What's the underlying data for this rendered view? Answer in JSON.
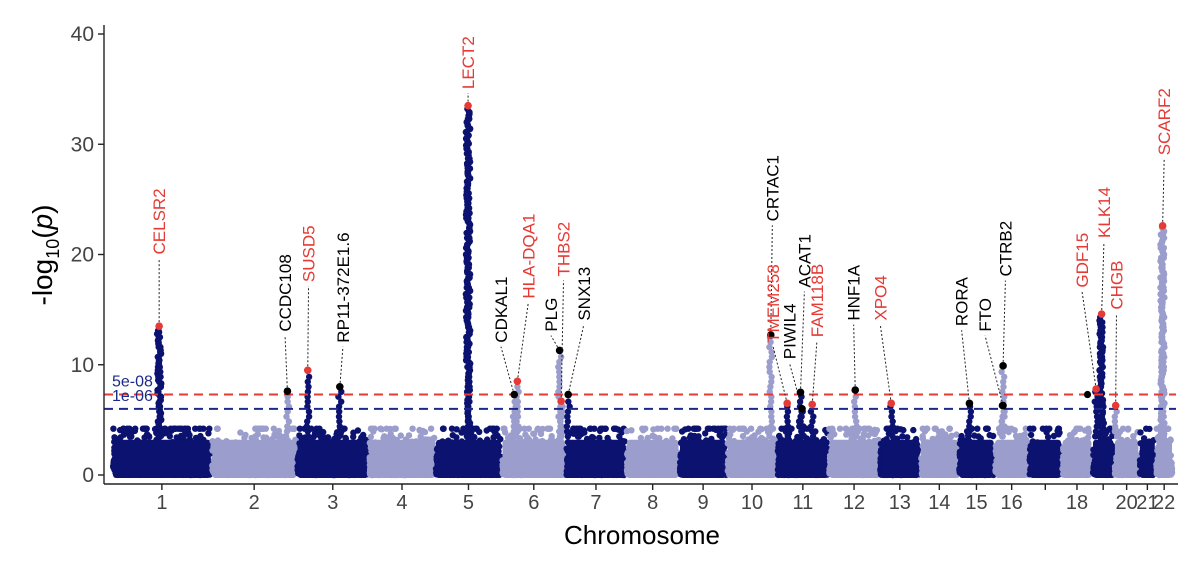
{
  "chart_data": {
    "type": "scatter",
    "subtype": "manhattan",
    "title": "",
    "xlabel": "Chromosome",
    "ylabel_main": "-log",
    "ylabel_sub": "10",
    "ylabel_var": "p",
    "ylim": [
      0,
      40
    ],
    "y_ticks": [
      0,
      10,
      20,
      30,
      40
    ],
    "grid": false,
    "colors": {
      "dark": "#0b1270",
      "light": "#9b9dcc",
      "red": "#e53a35",
      "black": "#000000",
      "threshold_red": "#e53a35",
      "threshold_blue": "#1b2a8a"
    },
    "thresholds": [
      {
        "label": "5e-08",
        "value": 7.3,
        "color": "#e53a35"
      },
      {
        "label": "1e-06",
        "value": 6.0,
        "color": "#1b2a8a"
      }
    ],
    "chromosomes": [
      {
        "chr": "1",
        "start": 0,
        "end": 12.5,
        "label": "1",
        "peak": 13.5,
        "color": "dark"
      },
      {
        "chr": "2",
        "start": 12.7,
        "end": 23.4,
        "label": "2",
        "peak": 6.0,
        "color": "light"
      },
      {
        "chr": "3",
        "start": 23.6,
        "end": 32.6,
        "label": "3",
        "peak": 9.5,
        "color": "dark"
      },
      {
        "chr": "4",
        "start": 32.8,
        "end": 41.1,
        "label": "4",
        "peak": 4.5,
        "color": "light"
      },
      {
        "chr": "5",
        "start": 41.3,
        "end": 49.6,
        "label": "5",
        "peak": 33.5,
        "color": "dark"
      },
      {
        "chr": "6",
        "start": 49.8,
        "end": 57.8,
        "label": "6",
        "peak": 11.3,
        "color": "light"
      },
      {
        "chr": "7",
        "start": 58.0,
        "end": 65.5,
        "label": "7",
        "peak": 7.0,
        "color": "dark"
      },
      {
        "chr": "8",
        "start": 65.7,
        "end": 72.3,
        "label": "8",
        "peak": 4.5,
        "color": "light"
      },
      {
        "chr": "9",
        "start": 72.5,
        "end": 78.4,
        "label": "9",
        "peak": 4.5,
        "color": "dark"
      },
      {
        "chr": "10",
        "start": 78.6,
        "end": 84.8,
        "label": "10",
        "peak": 12.7,
        "color": "light"
      },
      {
        "chr": "11",
        "start": 85.0,
        "end": 91.4,
        "label": "11",
        "peak": 7.5,
        "color": "dark"
      },
      {
        "chr": "12",
        "start": 91.6,
        "end": 97.9,
        "label": "12",
        "peak": 7.7,
        "color": "light"
      },
      {
        "chr": "13",
        "start": 98.1,
        "end": 103.1,
        "label": "13",
        "peak": 6.5,
        "color": "dark"
      },
      {
        "chr": "14",
        "start": 103.3,
        "end": 108.0,
        "label": "14",
        "peak": 6.3,
        "color": "light"
      },
      {
        "chr": "15",
        "start": 108.2,
        "end": 112.6,
        "label": "15",
        "peak": 6.5,
        "color": "dark"
      },
      {
        "chr": "16",
        "start": 112.8,
        "end": 117.0,
        "label": "16",
        "peak": 9.9,
        "color": "light"
      },
      {
        "chr": "17",
        "start": 117.2,
        "end": 121.2,
        "label": "",
        "peak": 5.0,
        "color": "dark"
      },
      {
        "chr": "18",
        "start": 121.4,
        "end": 125.1,
        "label": "18",
        "peak": 7.2,
        "color": "light"
      },
      {
        "chr": "19",
        "start": 125.3,
        "end": 127.9,
        "label": "",
        "peak": 14.6,
        "color": "dark"
      },
      {
        "chr": "20",
        "start": 128.1,
        "end": 131.1,
        "label": "20",
        "peak": 6.3,
        "color": "light"
      },
      {
        "chr": "21",
        "start": 131.3,
        "end": 133.2,
        "label": "21",
        "peak": 4.0,
        "color": "dark"
      },
      {
        "chr": "22",
        "start": 133.4,
        "end": 135.4,
        "label": "22",
        "peak": 22.6,
        "color": "light"
      }
    ],
    "annotations": [
      {
        "gene": "CELSR2",
        "color": "red",
        "x": 5.9,
        "y": 13.5,
        "label_x": 5.9,
        "label_y": 20.0
      },
      {
        "gene": "CCDC108",
        "color": "black",
        "x": 22.3,
        "y": 7.6,
        "label_x": 22.0,
        "label_y": 13.0
      },
      {
        "gene": "SUSD5",
        "color": "red",
        "x": 24.9,
        "y": 9.5,
        "label_x": 25.0,
        "label_y": 17.5
      },
      {
        "gene": "RP11-372E1.6",
        "color": "black",
        "x": 29.0,
        "y": 8.0,
        "label_x": 29.4,
        "label_y": 12.0
      },
      {
        "gene": "LECT2",
        "color": "red",
        "x": 45.4,
        "y": 33.5,
        "label_x": 45.4,
        "label_y": 35.0
      },
      {
        "gene": "CDKAL1",
        "color": "black",
        "x": 51.3,
        "y": 7.3,
        "label_x": 49.6,
        "label_y": 12.0
      },
      {
        "gene": "HLA-DQA1",
        "color": "red",
        "x": 51.7,
        "y": 8.5,
        "label_x": 53.1,
        "label_y": 16.0
      },
      {
        "gene": "PLG",
        "color": "black",
        "x": 57.1,
        "y": 11.3,
        "label_x": 56.0,
        "label_y": 13.0
      },
      {
        "gene": "THBS2",
        "color": "red",
        "x": 57.3,
        "y": 6.7,
        "label_x": 57.6,
        "label_y": 18.0
      },
      {
        "gene": "SNX13",
        "color": "black",
        "x": 58.2,
        "y": 7.3,
        "label_x": 60.2,
        "label_y": 14.0
      },
      {
        "gene": "CRTAC1",
        "color": "black",
        "x": 84.1,
        "y": 12.7,
        "label_x": 84.3,
        "label_y": 23.0
      },
      {
        "gene": "TMEM258",
        "color": "red",
        "x": 86.2,
        "y": 6.5,
        "label_x": 84.4,
        "label_y": 12.0
      },
      {
        "gene": "PIWIL4",
        "color": "black",
        "x": 88.1,
        "y": 6.0,
        "label_x": 86.5,
        "label_y": 10.5
      },
      {
        "gene": "ACAT1",
        "color": "black",
        "x": 87.9,
        "y": 7.5,
        "label_x": 88.4,
        "label_y": 17.0
      },
      {
        "gene": "FAM118B",
        "color": "red",
        "x": 89.4,
        "y": 6.4,
        "label_x": 90.0,
        "label_y": 12.5
      },
      {
        "gene": "HNF1A",
        "color": "black",
        "x": 94.9,
        "y": 7.7,
        "label_x": 94.7,
        "label_y": 14.0
      },
      {
        "gene": "XPO4",
        "color": "red",
        "x": 99.5,
        "y": 6.5,
        "label_x": 98.1,
        "label_y": 14.0
      },
      {
        "gene": "RORA",
        "color": "black",
        "x": 109.5,
        "y": 6.5,
        "label_x": 108.5,
        "label_y": 13.5
      },
      {
        "gene": "FTO",
        "color": "black",
        "x": 113.8,
        "y": 6.3,
        "label_x": 111.5,
        "label_y": 13.0
      },
      {
        "gene": "CTRB2",
        "color": "black",
        "x": 113.8,
        "y": 9.9,
        "label_x": 114.1,
        "label_y": 18.0
      },
      {
        "gene": "GDF15",
        "color": "red",
        "x": 125.7,
        "y": 7.8,
        "label_x": 123.9,
        "label_y": 17.0
      },
      {
        "gene": "KLK14",
        "color": "red",
        "x": 126.4,
        "y": 14.6,
        "label_x": 126.7,
        "label_y": 21.5
      },
      {
        "gene": "CHGB",
        "color": "red",
        "x": 128.2,
        "y": 6.3,
        "label_x": 128.3,
        "label_y": 15.0
      },
      {
        "gene": "SCARF2",
        "color": "red",
        "x": 134.2,
        "y": 22.6,
        "label_x": 134.4,
        "label_y": 29.0
      }
    ],
    "extra_points": [
      {
        "x": 124.6,
        "y": 7.3,
        "color": "black"
      },
      {
        "x": 113.7,
        "y": 6.3,
        "color": "black"
      },
      {
        "x": 5.9,
        "y": 9.4,
        "color": "dark"
      }
    ]
  }
}
